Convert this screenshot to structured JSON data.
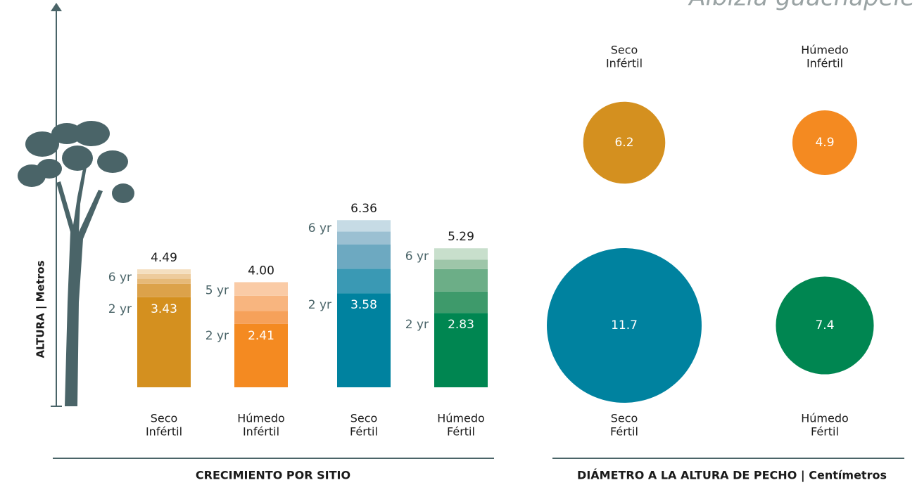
{
  "title": "Albizia guachapele",
  "chart_data": [
    {
      "type": "stacked-bar",
      "title": "CRECIMIENTO POR SITIO",
      "ylabel": "ALTURA  |  Metros",
      "ylim": [
        0,
        6.5
      ],
      "categories": [
        [
          "Seco",
          "Infértil"
        ],
        [
          "Húmedo",
          "Infértil"
        ],
        [
          "Seco",
          "Fértil"
        ],
        [
          "Húmedo",
          "Fértil"
        ]
      ],
      "bars": [
        {
          "segments": [
            3.43,
            0.51,
            0.19,
            0.18,
            0.18
          ],
          "colors": [
            "#d4901f",
            "#dca24a",
            "#e6b978",
            "#edcb9c",
            "#f4dfc0"
          ],
          "total": 4.49,
          "base_label": "2 yr",
          "top_label": "6 yr"
        },
        {
          "segments": [
            2.41,
            0.5,
            0.57,
            0.52
          ],
          "colors": [
            "#f48a21",
            "#f6a15a",
            "#f8b57f",
            "#facba6"
          ],
          "total": 4,
          "total_label": "4.00",
          "base_label": "2 yr",
          "top_label": "5 yr"
        },
        {
          "segments": [
            3.58,
            0.93,
            0.93,
            0.49,
            0.43
          ],
          "colors": [
            "#00829f",
            "#3a99b4",
            "#6da9c1",
            "#9bc0d2",
            "#c6dbe5"
          ],
          "total": 6.36,
          "base_label": "2 yr",
          "top_label": "6 yr"
        },
        {
          "segments": [
            2.83,
            0.81,
            0.86,
            0.36,
            0.43
          ],
          "colors": [
            "#008651",
            "#3e9a6b",
            "#6cae87",
            "#9ec6a9",
            "#c8dfcc"
          ],
          "total": 5.29,
          "base_label": "2 yr",
          "top_label": "6 yr"
        }
      ]
    },
    {
      "type": "bubble",
      "title": "DIÁMETRO A LA ALTURA DE PECHO | Centímetros",
      "categories": [
        [
          "Seco",
          "Infértil"
        ],
        [
          "Húmedo",
          "Infértil"
        ],
        [
          "Seco",
          "Fértil"
        ],
        [
          "Húmedo",
          "Fértil"
        ]
      ],
      "values": [
        6.2,
        4.9,
        11.7,
        7.4
      ],
      "colors": [
        "#d4901f",
        "#f48a21",
        "#00829f",
        "#008651"
      ]
    }
  ]
}
